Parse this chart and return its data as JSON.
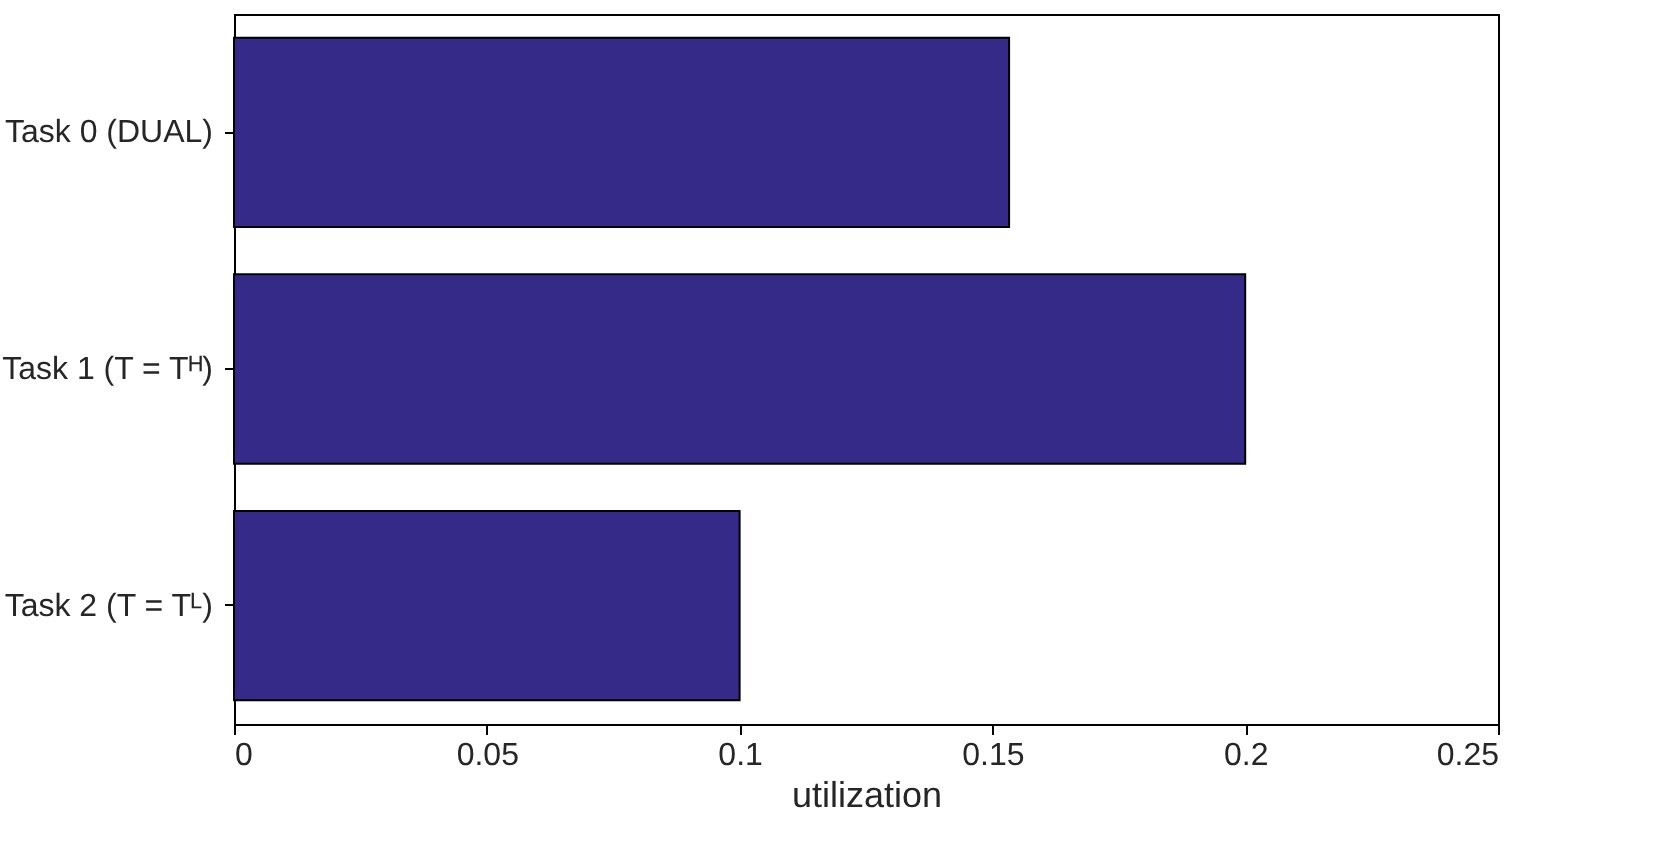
{
  "chart_data": {
    "type": "bar",
    "orientation": "horizontal",
    "xlabel": "utilization",
    "categories": [
      "Task 0 (DUAL)",
      "Task 1 (T = Tᴴ)",
      "Task 2 (T = Tᴸ)"
    ],
    "values": [
      0.1533,
      0.2,
      0.1
    ],
    "color": "#352a87",
    "xlim": [
      0,
      0.25
    ],
    "xticks": [
      0,
      0.05,
      0.1,
      0.15,
      0.2,
      0.25
    ],
    "grid": false
  }
}
